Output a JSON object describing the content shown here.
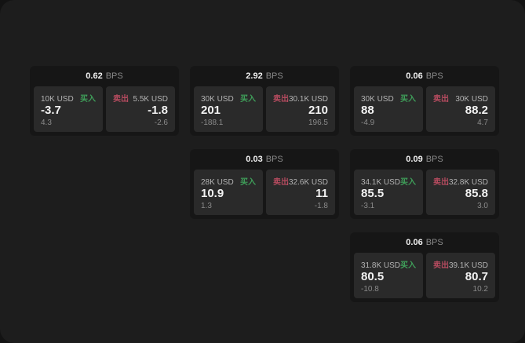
{
  "labels": {
    "bps_unit": "BPS",
    "buy": "买入",
    "sell": "卖出"
  },
  "colors": {
    "page_bg": "#131313",
    "panel_bg": "#1d1d1d",
    "card_bg": "#161616",
    "tile_bg": "#2a2a2a",
    "buy_green": "#3fa05a",
    "sell_red": "#b54b5f",
    "text_primary": "#f2f2f2",
    "text_muted": "#8a8a8a",
    "text_label": "#b3b3b3"
  },
  "cards": [
    {
      "bps": "0.62",
      "buy": {
        "amount": "10K USD",
        "price": "-3.7",
        "sub": "4.3"
      },
      "sell": {
        "amount": "5.5K USD",
        "price": "-1.8",
        "sub": "-2.6"
      }
    },
    {
      "bps": "2.92",
      "buy": {
        "amount": "30K USD",
        "price": "201",
        "sub": "-188.1"
      },
      "sell": {
        "amount": "30.1K USD",
        "price": "210",
        "sub": "196.5"
      }
    },
    {
      "bps": "0.06",
      "buy": {
        "amount": "30K USD",
        "price": "88",
        "sub": "-4.9"
      },
      "sell": {
        "amount": "30K USD",
        "price": "88.2",
        "sub": "4.7"
      }
    },
    {
      "bps": "0.03",
      "buy": {
        "amount": "28K USD",
        "price": "10.9",
        "sub": "1.3"
      },
      "sell": {
        "amount": "32.6K USD",
        "price": "11",
        "sub": "-1.8"
      }
    },
    {
      "bps": "0.09",
      "buy": {
        "amount": "34.1K USD",
        "price": "85.5",
        "sub": "-3.1"
      },
      "sell": {
        "amount": "32.8K USD",
        "price": "85.8",
        "sub": "3.0"
      }
    },
    {
      "bps": "0.06",
      "buy": {
        "amount": "31.8K USD",
        "price": "80.5",
        "sub": "-10.8"
      },
      "sell": {
        "amount": "39.1K USD",
        "price": "80.7",
        "sub": "10.2"
      }
    }
  ]
}
